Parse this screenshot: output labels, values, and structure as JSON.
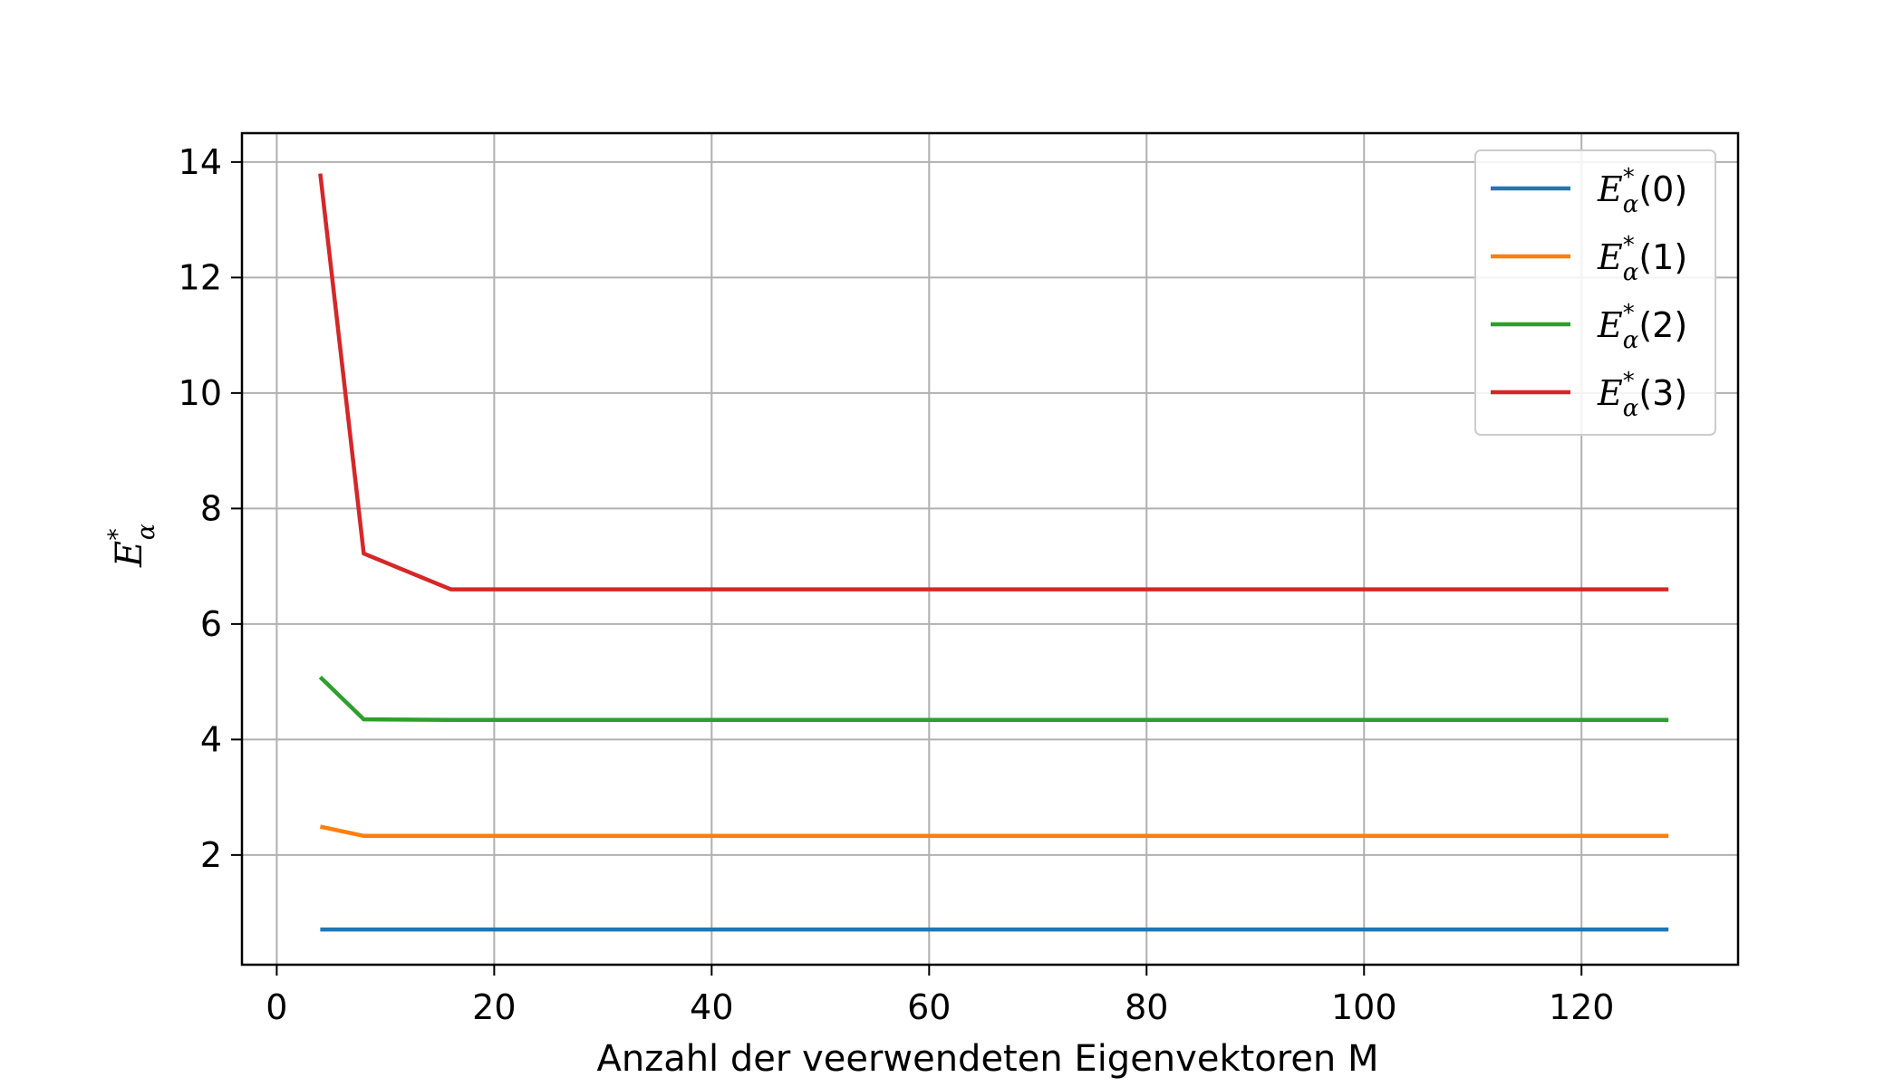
{
  "chart_data": {
    "type": "line",
    "title": "",
    "xlabel": "Anzahl der veerwendeten Eigenvektoren M",
    "ylabel": {
      "base": "E",
      "sup": "*",
      "sub": "α"
    },
    "xlim": [
      -3.2,
      134.4
    ],
    "ylim": [
      0.1,
      14.5
    ],
    "xticks": [
      0,
      20,
      40,
      60,
      80,
      100,
      120
    ],
    "yticks": [
      2,
      4,
      6,
      8,
      10,
      12,
      14
    ],
    "grid": true,
    "legend_position": "top-right",
    "x": [
      4,
      8,
      16,
      32,
      64,
      128
    ],
    "series": [
      {
        "name": {
          "base": "E",
          "sup": "*",
          "sub": "α",
          "arg": "(0)"
        },
        "color": "#1f77b4",
        "values": [
          0.71,
          0.71,
          0.71,
          0.71,
          0.71,
          0.71
        ]
      },
      {
        "name": {
          "base": "E",
          "sup": "*",
          "sub": "α",
          "arg": "(1)"
        },
        "color": "#ff7f0e",
        "values": [
          2.49,
          2.33,
          2.33,
          2.33,
          2.33,
          2.33
        ]
      },
      {
        "name": {
          "base": "E",
          "sup": "*",
          "sub": "α",
          "arg": "(2)"
        },
        "color": "#2ca02c",
        "values": [
          5.08,
          4.35,
          4.34,
          4.34,
          4.34,
          4.34
        ]
      },
      {
        "name": {
          "base": "E",
          "sup": "*",
          "sub": "α",
          "arg": "(3)"
        },
        "color": "#d62728",
        "values": [
          13.8,
          7.22,
          6.6,
          6.6,
          6.6,
          6.6
        ]
      }
    ]
  }
}
